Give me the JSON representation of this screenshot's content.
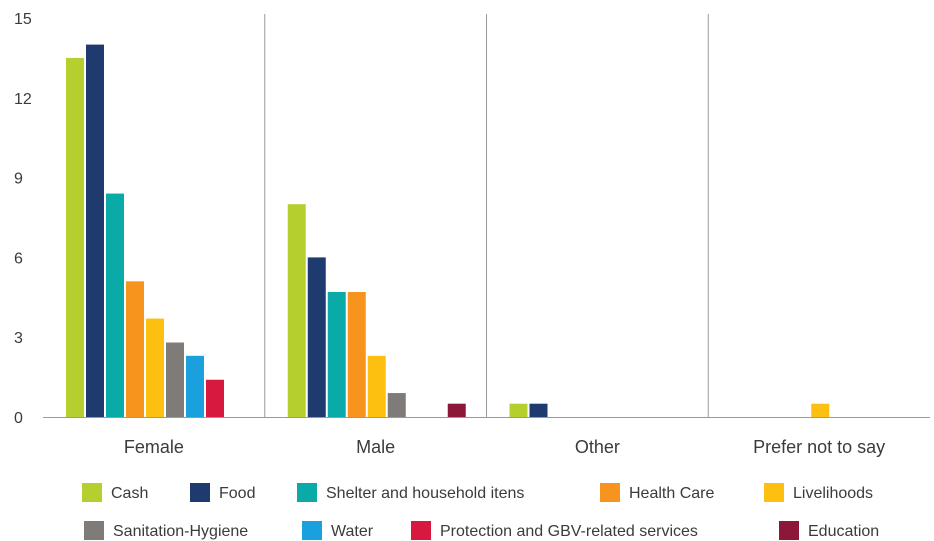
{
  "chart_data": {
    "type": "bar",
    "categories": [
      "Female",
      "Male",
      "Other",
      "Prefer not to say"
    ],
    "ylim": [
      0,
      15
    ],
    "yticks": [
      "0",
      "3",
      "6",
      "9",
      "12",
      "15"
    ],
    "grid": false,
    "legend_position": "bottom",
    "series": [
      {
        "name": "Cash",
        "color": "#b5cf2f",
        "values": [
          13.5,
          8.0,
          0.5,
          0.0
        ]
      },
      {
        "name": "Food",
        "color": "#1e3a6e",
        "values": [
          14.0,
          6.0,
          0.5,
          0.0
        ]
      },
      {
        "name": "Shelter and household itens",
        "color": "#0aaaa8",
        "values": [
          8.4,
          4.7,
          0.0,
          0.0
        ]
      },
      {
        "name": "Health Care",
        "color": "#f7941d",
        "values": [
          5.1,
          4.7,
          0.0,
          0.0
        ]
      },
      {
        "name": "Livelihoods",
        "color": "#fdc010",
        "values": [
          3.7,
          2.3,
          0.0,
          0.5
        ]
      },
      {
        "name": "Sanitation-Hygiene",
        "color": "#7e7b79",
        "values": [
          2.8,
          0.9,
          0.0,
          0.0
        ]
      },
      {
        "name": "Water",
        "color": "#1ba0de",
        "values": [
          2.3,
          0.0,
          0.0,
          0.0
        ]
      },
      {
        "name": "Protection and GBV-related services",
        "color": "#d7183f",
        "values": [
          1.4,
          0.0,
          0.0,
          0.0
        ]
      },
      {
        "name": "Education",
        "color": "#8d1738",
        "values": [
          0.0,
          0.5,
          0.0,
          0.0
        ]
      }
    ]
  }
}
